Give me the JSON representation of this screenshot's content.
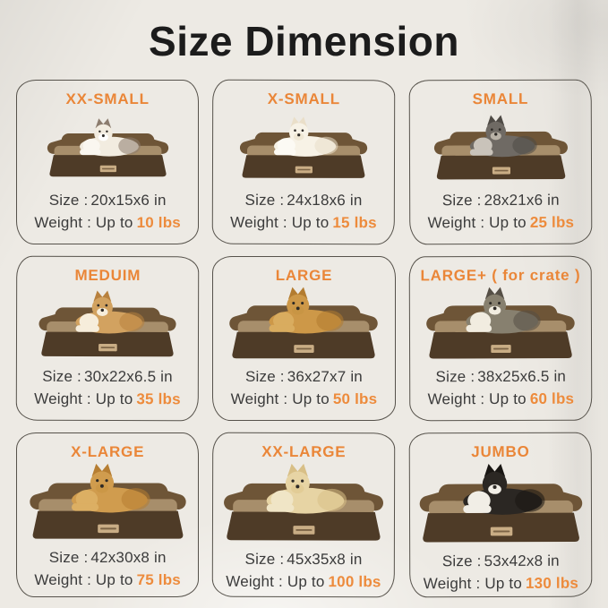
{
  "page": {
    "title": "Size Dimension",
    "background_color": "#EDEAE4",
    "title_color": "#1C1C1C",
    "heading_color": "#EA8638",
    "accent_color": "#ED8B3C",
    "text_color": "#3B3B3B",
    "border_color": "#56524B"
  },
  "bed": {
    "bolster_color": "#6E5537",
    "cushion_color": "#A78E6B",
    "base_color": "#4E3B27",
    "label_color": "#C9AD85"
  },
  "cells": [
    {
      "id": "xx-small",
      "label": "XX-SMALL",
      "animal": "ragdoll-cat",
      "size_label": "Size :",
      "size_value": "20x15x6 in",
      "weight_label": "Weight : Up to",
      "weight_value": "10 lbs",
      "bed_scale": 0.82,
      "animal_colors": {
        "body": "#F2ECE0",
        "ear": "#8C7C6E",
        "chest": "#FAF7F0",
        "muzzle": "#FFFFFF"
      }
    },
    {
      "id": "x-small",
      "label": "X-SMALL",
      "animal": "pomeranian",
      "size_label": "Size :",
      "size_value": "24x18x6 in",
      "weight_label": "Weight : Up to",
      "weight_value": "15 lbs",
      "bed_scale": 0.86,
      "animal_colors": {
        "body": "#F7F2E6",
        "ear": "#EADFC9",
        "chest": "#FCFAF4",
        "muzzle": "#EFE7D4"
      }
    },
    {
      "id": "small",
      "label": "SMALL",
      "animal": "schnauzer",
      "size_label": "Size :",
      "size_value": "28x21x6 in",
      "weight_label": "Weight : Up to",
      "weight_value": "25 lbs",
      "bed_scale": 0.9,
      "animal_colors": {
        "body": "#6F6A64",
        "ear": "#4E4A45",
        "chest": "#C9C3BA",
        "muzzle": "#B9B2A7"
      }
    },
    {
      "id": "medium",
      "label": "MEDUIM",
      "animal": "corgi",
      "size_label": "Size :",
      "size_value": "30x22x6.5 in",
      "weight_label": "Weight : Up to",
      "weight_value": "35 lbs",
      "bed_scale": 0.93,
      "animal_colors": {
        "body": "#D2A260",
        "ear": "#B8813E",
        "chest": "#F6EDDB",
        "muzzle": "#F6EDDB"
      }
    },
    {
      "id": "large",
      "label": "LARGE",
      "animal": "golden-retriever",
      "size_label": "Size :",
      "size_value": "36x27x7 in",
      "weight_label": "Weight : Up to",
      "weight_value": "50 lbs",
      "bed_scale": 1.0,
      "animal_colors": {
        "body": "#CD9848",
        "ear": "#B37C30",
        "chest": "#D9AC5F",
        "muzzle": "#C89544"
      }
    },
    {
      "id": "large-plus",
      "label": "LARGE+ ( for crate )",
      "animal": "australian-shepherd",
      "size_label": "Size :",
      "size_value": "38x25x6.5 in",
      "weight_label": "Weight : Up to",
      "weight_value": "60 lbs",
      "bed_scale": 1.0,
      "animal_colors": {
        "body": "#87806F",
        "ear": "#554F46",
        "chest": "#F1ECE0",
        "muzzle": "#F1ECE0"
      }
    },
    {
      "id": "x-large",
      "label": "X-LARGE",
      "animal": "golden-retriever",
      "size_label": "Size :",
      "size_value": "42x30x8 in",
      "weight_label": "Weight : Up to",
      "weight_value": "75 lbs",
      "bed_scale": 1.05,
      "animal_colors": {
        "body": "#D09C4E",
        "ear": "#B67E32",
        "chest": "#DCAF63",
        "muzzle": "#CB9746"
      }
    },
    {
      "id": "xx-large",
      "label": "XX-LARGE",
      "animal": "labrador",
      "size_label": "Size :",
      "size_value": "45x35x8 in",
      "weight_label": "Weight : Up to",
      "weight_value": "100 lbs",
      "bed_scale": 1.08,
      "animal_colors": {
        "body": "#E7D4A4",
        "ear": "#D8BF86",
        "chest": "#F0E5C6",
        "muzzle": "#E2CC96"
      }
    },
    {
      "id": "jumbo",
      "label": "JUMBO",
      "animal": "bernese-mountain-dog",
      "size_label": "Size :",
      "size_value": "53x42x8 in",
      "weight_label": "Weight : Up to",
      "weight_value": "130 lbs",
      "bed_scale": 1.1,
      "animal_colors": {
        "body": "#2B2723",
        "ear": "#191613",
        "chest": "#F1EEE6",
        "muzzle": "#F1EEE6"
      }
    }
  ]
}
